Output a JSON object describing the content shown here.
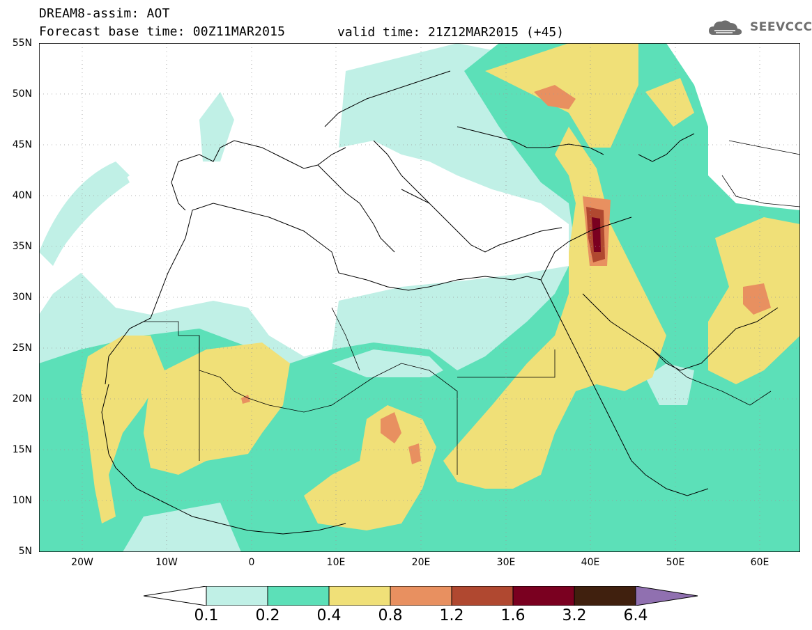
{
  "header": {
    "title_line1": "DREAM8-assim: AOT",
    "title_line2": "Forecast base time: 00Z11MAR2015",
    "valid_time": "valid time: 21Z12MAR2015 (+45)",
    "logo_text": "SEEVCCC",
    "logo_icon": "cloud-logo-icon"
  },
  "map": {
    "lat_labels": [
      "55N",
      "50N",
      "45N",
      "40N",
      "35N",
      "30N",
      "25N",
      "20N",
      "15N",
      "10N",
      "5N"
    ],
    "lon_labels": [
      "20W",
      "10W",
      "0",
      "10E",
      "20E",
      "30E",
      "40E",
      "50E",
      "60E"
    ],
    "grid": "dotted"
  },
  "colorbar": {
    "labels": [
      "0.1",
      "0.2",
      "0.4",
      "0.8",
      "1.2",
      "1.6",
      "3.2",
      "6.4"
    ],
    "colors": [
      "#ffffff",
      "#c0f0e6",
      "#5ce0b8",
      "#f0e078",
      "#e89060",
      "#b04830",
      "#7a0020",
      "#40200e",
      "#9070b0"
    ]
  }
}
